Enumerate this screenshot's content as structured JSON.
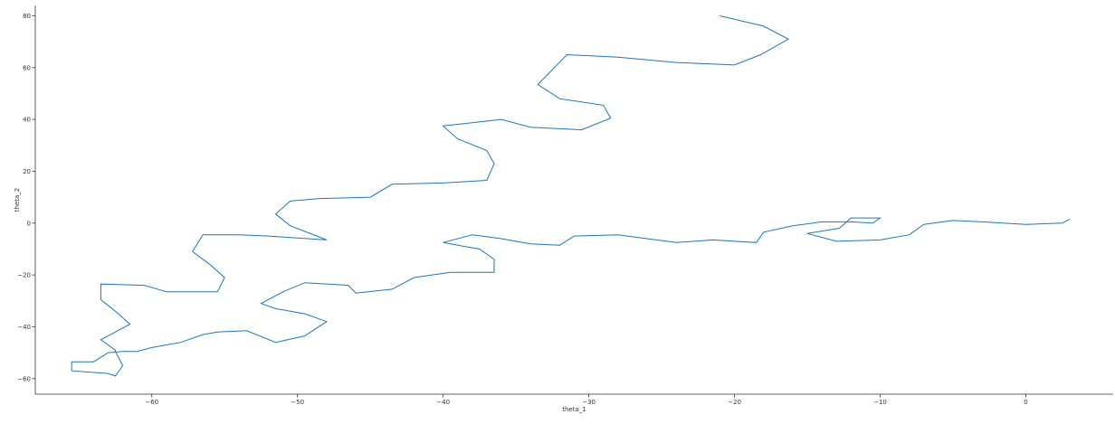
{
  "chart_data": {
    "type": "line",
    "title": "",
    "xlabel": "theta_1",
    "ylabel": "theta_2",
    "xlim": [
      -68,
      6
    ],
    "ylim": [
      -66,
      84
    ],
    "xticks": [
      -60,
      -50,
      -40,
      -30,
      -20,
      -10,
      0
    ],
    "yticks": [
      -60,
      -40,
      -20,
      0,
      20,
      40,
      60,
      80
    ],
    "grid": false,
    "legend": "none",
    "colors": {
      "line": "#1f77b4",
      "axis": "#333333"
    },
    "series": [
      {
        "x": [
          -21.0,
          -18.0,
          -16.3,
          -18.2,
          -20.0,
          -24.0,
          -28.0,
          -31.5,
          -33.5,
          -32.0,
          -29.0,
          -28.5,
          -30.5,
          -34.0,
          -36.0,
          -40.0,
          -39.0,
          -37.0,
          -36.5,
          -37.0,
          -40.0,
          -43.5,
          -45.0,
          -48.5,
          -50.5,
          -51.5,
          -50.5,
          -48.0,
          -52.0,
          -54.0,
          -56.5,
          -57.2,
          -56.0,
          -55.0,
          -55.5,
          -59.0,
          -60.5,
          -63.5,
          -63.5,
          -62.5,
          -61.5,
          -63.5,
          -62.5,
          -62.5,
          -62.0,
          -62.5,
          -63.0,
          -65.5,
          -65.5,
          -64.0,
          -63.0,
          -62.0,
          -61.0,
          -60.0,
          -58.0,
          -56.5,
          -55.5,
          -53.5,
          -51.5,
          -49.5,
          -48.0,
          -49.5,
          -51.5,
          -52.5,
          -51.0,
          -49.5,
          -46.5,
          -46.0,
          -43.5,
          -42.0,
          -39.5,
          -36.5,
          -36.5,
          -37.5,
          -40.0,
          -38.0,
          -36.0,
          -34.0,
          -32.0,
          -31.0,
          -28.0,
          -24.0,
          -21.5,
          -18.5,
          -18.0,
          -16.0,
          -14.0,
          -12.0,
          -10.5,
          -10.0,
          -12.0,
          -12.8,
          -15.0,
          -13.0,
          -10.0,
          -8.0,
          -7.0,
          -5.0,
          -3.0,
          0.0,
          2.5,
          3.0
        ],
        "y": [
          80.0,
          76.0,
          71.0,
          65.0,
          61.0,
          62.0,
          64.0,
          65.0,
          53.5,
          48.0,
          45.5,
          40.5,
          36.0,
          37.0,
          40.0,
          37.5,
          32.5,
          28.0,
          23.0,
          16.5,
          15.5,
          15.0,
          10.0,
          9.5,
          8.5,
          3.5,
          -1.0,
          -6.5,
          -5.0,
          -4.5,
          -4.5,
          -11.0,
          -16.0,
          -21.0,
          -26.5,
          -26.5,
          -24.0,
          -23.5,
          -29.5,
          -34.0,
          -39.0,
          -45.0,
          -49.0,
          -49.5,
          -55.0,
          -59.0,
          -58.0,
          -57.0,
          -53.5,
          -53.5,
          -50.0,
          -49.5,
          -49.5,
          -48.0,
          -46.0,
          -43.0,
          -42.0,
          -41.5,
          -46.0,
          -43.5,
          -38.0,
          -35.0,
          -33.0,
          -31.0,
          -26.5,
          -23.0,
          -24.0,
          -27.0,
          -25.5,
          -21.0,
          -19.0,
          -19.0,
          -14.0,
          -10.0,
          -7.5,
          -4.5,
          -6.0,
          -8.0,
          -8.5,
          -5.0,
          -4.5,
          -7.5,
          -6.5,
          -7.5,
          -3.5,
          -1.0,
          0.5,
          0.5,
          0.0,
          2.0,
          2.0,
          -2.0,
          -4.0,
          -7.0,
          -6.5,
          -4.5,
          -0.5,
          1.0,
          0.5,
          -0.5,
          0.0,
          1.5
        ]
      }
    ]
  }
}
